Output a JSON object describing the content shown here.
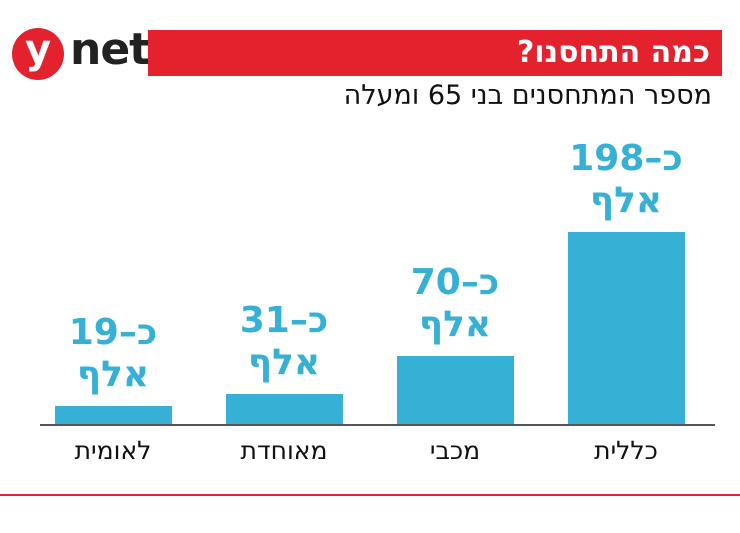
{
  "header": {
    "logo_y": "y",
    "logo_net": "net"
  },
  "chart_data": {
    "type": "bar",
    "title": "כמה התחסנו?",
    "subtitle": "מספר המתחסנים בני 65 ומעלה",
    "categories": [
      "כללית",
      "מכבי",
      "מאוחדת",
      "לאומית"
    ],
    "values": [
      198,
      70,
      31,
      19
    ],
    "value_labels": [
      "כ–198 אלף",
      "כ–70 אלף",
      "כ–31 אלף",
      "כ–19 אלף"
    ],
    "color": "#36b0d5"
  }
}
